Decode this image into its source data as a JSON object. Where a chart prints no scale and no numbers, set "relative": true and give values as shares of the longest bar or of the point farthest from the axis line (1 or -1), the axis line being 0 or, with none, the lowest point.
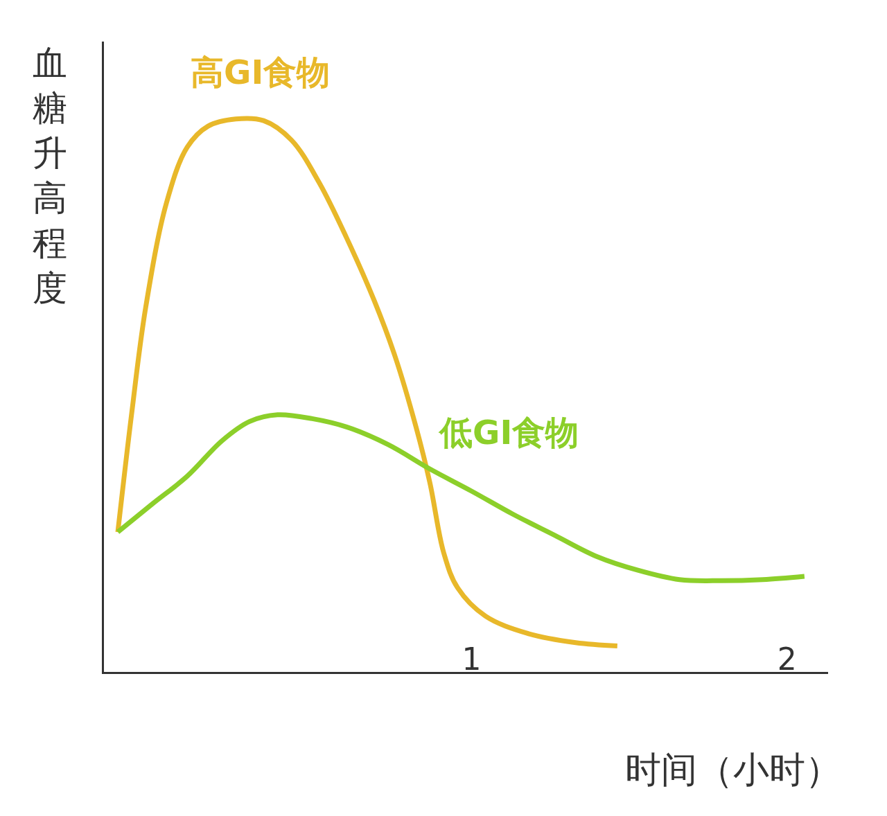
{
  "chart_data": {
    "type": "line",
    "relative": true,
    "xlabel": "时间（小时）",
    "ylabel": "血糖升高程度",
    "xlim": [
      -0.165,
      2.13
    ],
    "xticks": [
      1,
      2
    ],
    "legend": false,
    "marker": "none",
    "line_style": "solid",
    "series": [
      {
        "name": "高GI食物",
        "color": "#e8b82a",
        "x": [
          -0.121,
          -0.077,
          -0.033,
          0.033,
          0.099,
          0.165,
          0.253,
          0.341,
          0.429,
          0.516,
          0.604,
          0.692,
          0.758,
          0.824,
          0.868,
          0.912,
          0.956,
          1.044,
          1.176,
          1.33,
          1.462
        ],
        "values": [
          0.253,
          0.468,
          0.658,
          0.848,
          0.949,
          0.987,
          1.0,
          0.997,
          0.962,
          0.886,
          0.785,
          0.671,
          0.57,
          0.443,
          0.342,
          0.215,
          0.152,
          0.101,
          0.07,
          0.053,
          0.047
        ]
      },
      {
        "name": "低GI食物",
        "color": "#8ccf2a",
        "x": [
          -0.121,
          -0.011,
          0.099,
          0.209,
          0.297,
          0.385,
          0.495,
          0.604,
          0.736,
          0.868,
          1.0,
          1.132,
          1.264,
          1.396,
          1.527,
          1.659,
          1.791,
          1.923,
          2.055
        ],
        "values": [
          0.253,
          0.304,
          0.354,
          0.418,
          0.453,
          0.465,
          0.458,
          0.443,
          0.411,
          0.367,
          0.327,
          0.285,
          0.247,
          0.209,
          0.184,
          0.167,
          0.165,
          0.167,
          0.173
        ]
      }
    ]
  }
}
